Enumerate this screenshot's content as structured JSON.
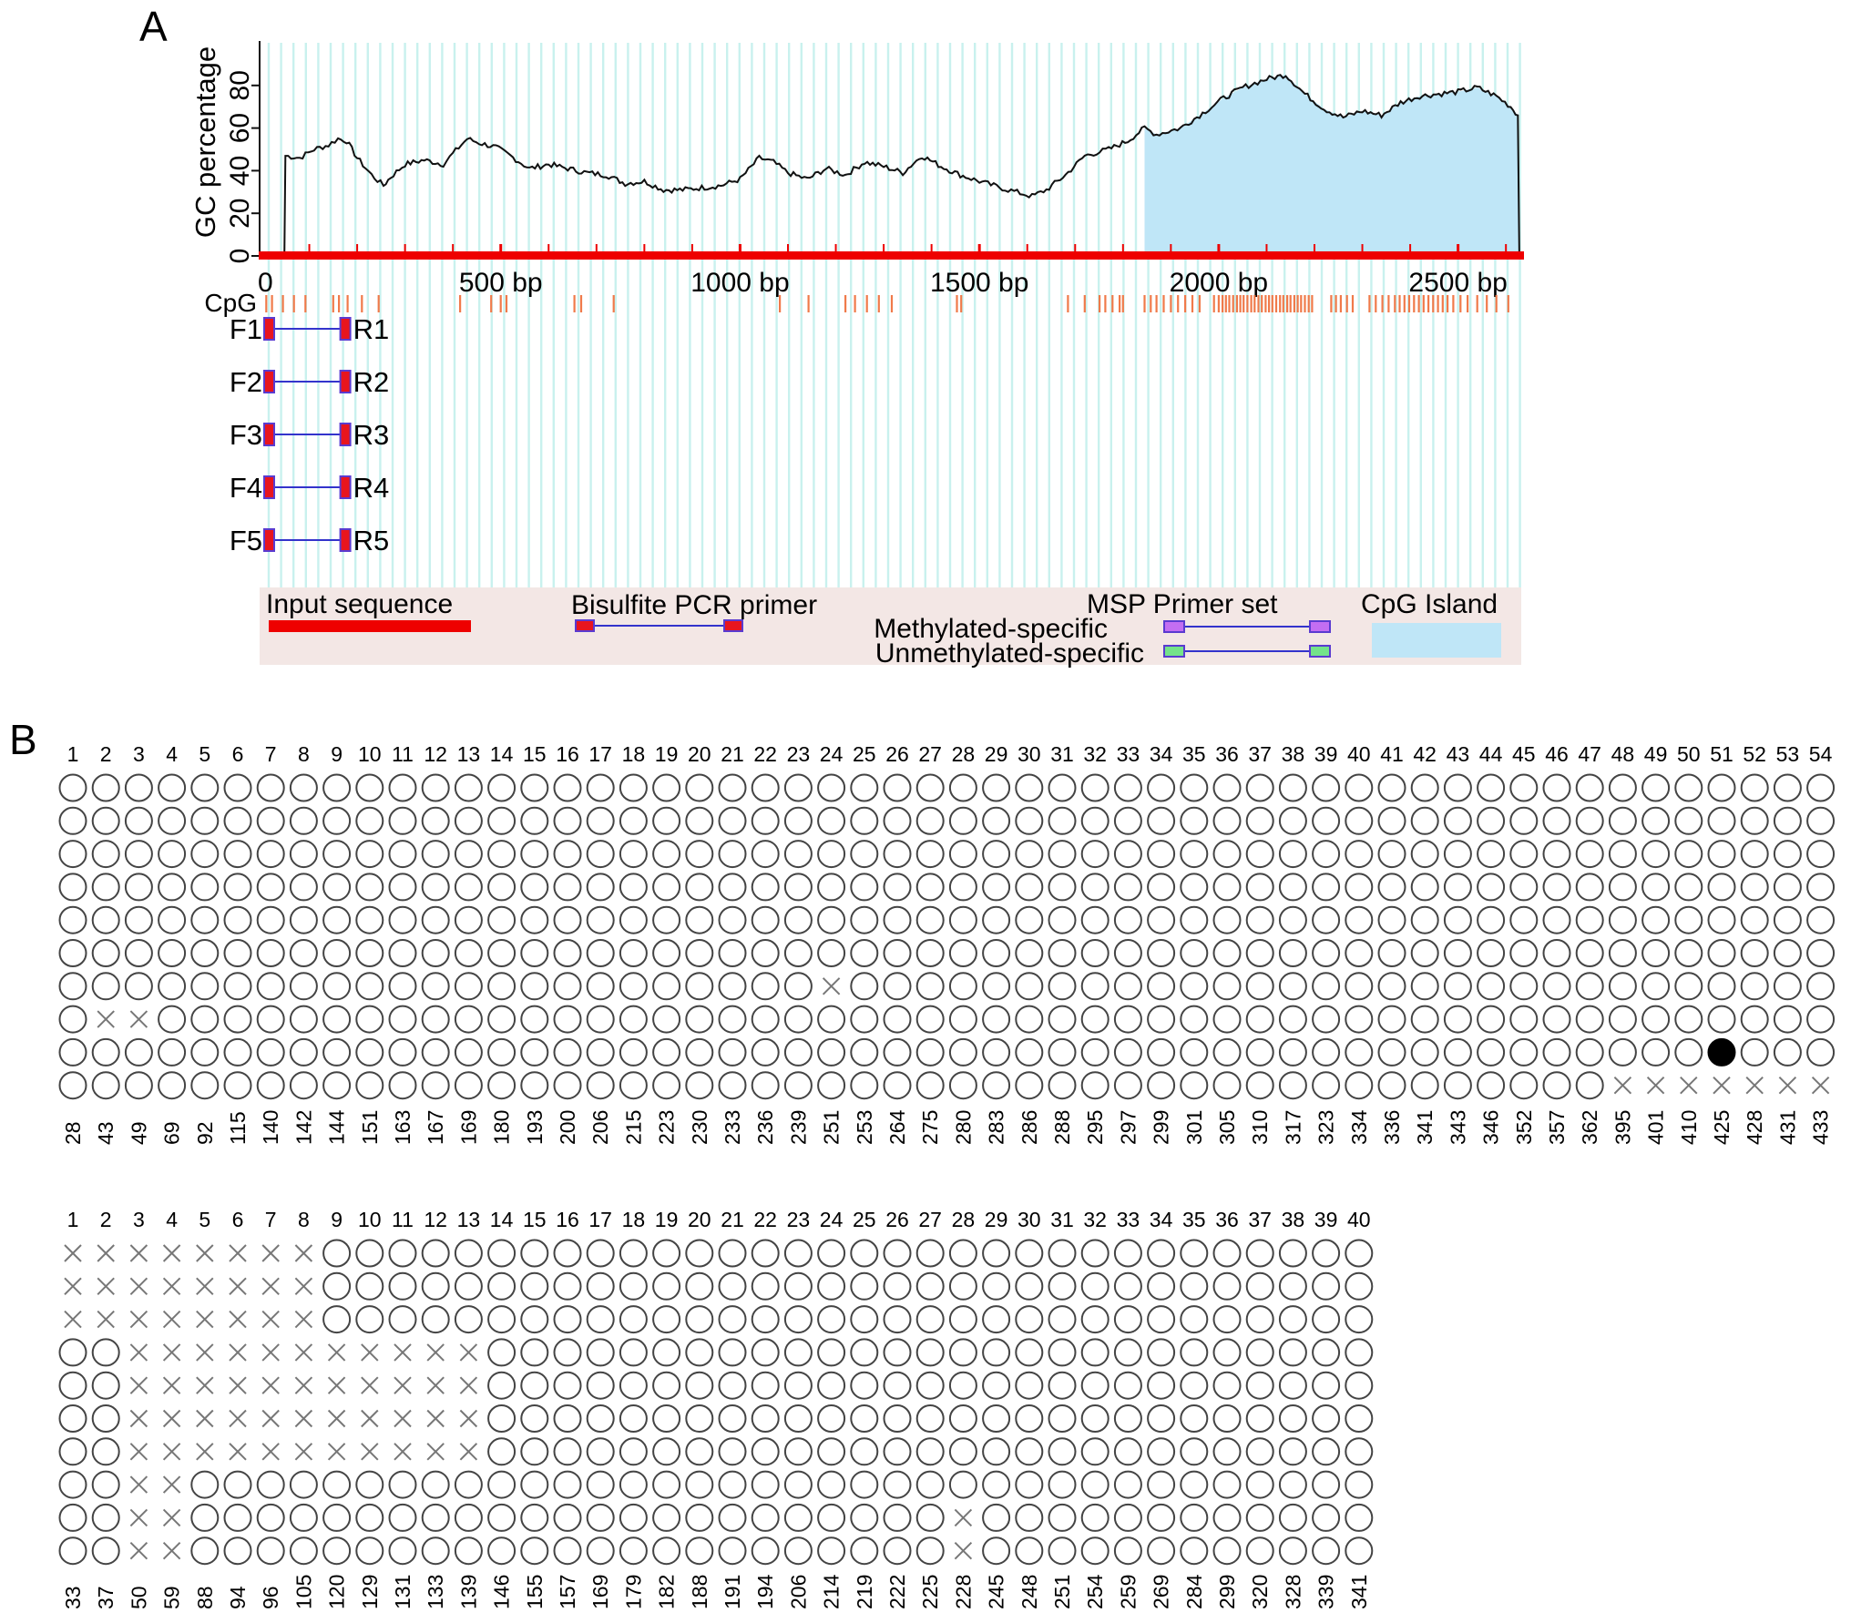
{
  "panel_a": {
    "label": "A",
    "y_axis_label": "GC percentage",
    "y_ticks": [
      "0",
      "20",
      "40",
      "60",
      "80"
    ],
    "x_ticks": [
      {
        "bp": 0,
        "label": "0"
      },
      {
        "bp": 500,
        "label": "500 bp"
      },
      {
        "bp": 1000,
        "label": "1000 bp"
      },
      {
        "bp": 1500,
        "label": "1500 bp"
      },
      {
        "bp": 2000,
        "label": "2000 bp"
      },
      {
        "bp": 2500,
        "label": "2500 bp"
      }
    ],
    "cpg_track_label": "CpG",
    "sequence_length_bp": 2632,
    "cpg_island_range_bp": [
      1845,
      2632
    ],
    "gc_profile": [
      [
        0,
        0
      ],
      [
        48,
        0
      ],
      [
        50,
        47
      ],
      [
        80,
        46
      ],
      [
        110,
        50
      ],
      [
        140,
        52
      ],
      [
        160,
        55
      ],
      [
        178,
        54
      ],
      [
        200,
        46
      ],
      [
        230,
        38
      ],
      [
        255,
        33
      ],
      [
        270,
        37
      ],
      [
        300,
        43
      ],
      [
        340,
        45
      ],
      [
        380,
        43
      ],
      [
        400,
        48
      ],
      [
        430,
        55
      ],
      [
        455,
        53
      ],
      [
        490,
        51
      ],
      [
        520,
        47
      ],
      [
        560,
        41
      ],
      [
        600,
        43
      ],
      [
        640,
        41
      ],
      [
        680,
        39
      ],
      [
        720,
        38
      ],
      [
        760,
        34
      ],
      [
        800,
        35
      ],
      [
        840,
        31
      ],
      [
        880,
        31
      ],
      [
        920,
        32
      ],
      [
        960,
        33
      ],
      [
        1000,
        36
      ],
      [
        1040,
        46
      ],
      [
        1070,
        44
      ],
      [
        1100,
        39
      ],
      [
        1140,
        36
      ],
      [
        1180,
        41
      ],
      [
        1220,
        38
      ],
      [
        1260,
        44
      ],
      [
        1300,
        42
      ],
      [
        1340,
        39
      ],
      [
        1380,
        47
      ],
      [
        1420,
        42
      ],
      [
        1460,
        38
      ],
      [
        1500,
        35
      ],
      [
        1560,
        31
      ],
      [
        1610,
        28
      ],
      [
        1640,
        31
      ],
      [
        1680,
        38
      ],
      [
        1720,
        47
      ],
      [
        1770,
        50
      ],
      [
        1810,
        54
      ],
      [
        1845,
        60
      ],
      [
        1870,
        57
      ],
      [
        1920,
        60
      ],
      [
        1960,
        66
      ],
      [
        2010,
        74
      ],
      [
        2050,
        79
      ],
      [
        2100,
        83
      ],
      [
        2140,
        85
      ],
      [
        2180,
        76
      ],
      [
        2220,
        69
      ],
      [
        2260,
        65
      ],
      [
        2300,
        68
      ],
      [
        2340,
        66
      ],
      [
        2380,
        72
      ],
      [
        2420,
        75
      ],
      [
        2460,
        76
      ],
      [
        2500,
        77
      ],
      [
        2540,
        79
      ],
      [
        2580,
        75
      ],
      [
        2610,
        70
      ],
      [
        2625,
        66
      ],
      [
        2628,
        0
      ],
      [
        2632,
        0
      ]
    ],
    "cpg_sites_bp": [
      10,
      22,
      45,
      68,
      92,
      150,
      162,
      180,
      210,
      245,
      415,
      480,
      500,
      512,
      654,
      668,
      736,
      1083,
      1143,
      1220,
      1240,
      1265,
      1290,
      1317,
      1453,
      1462,
      1685,
      1720,
      1751,
      1763,
      1778,
      1793,
      1800,
      1845,
      1858,
      1870,
      1885,
      1900,
      1915,
      1930,
      1945,
      1960,
      1990,
      2000,
      2008,
      2015,
      2022,
      2030,
      2038,
      2045,
      2052,
      2060,
      2068,
      2075,
      2083,
      2090,
      2098,
      2105,
      2112,
      2120,
      2128,
      2135,
      2143,
      2150,
      2158,
      2165,
      2172,
      2180,
      2188,
      2195,
      2235,
      2245,
      2255,
      2268,
      2280,
      2315,
      2328,
      2342,
      2355,
      2368,
      2378,
      2388,
      2398,
      2408,
      2418,
      2428,
      2438,
      2448,
      2458,
      2468,
      2478,
      2490,
      2505,
      2520,
      2540,
      2560,
      2580,
      2605
    ],
    "primers": [
      {
        "forward": "F1",
        "reverse": "R1"
      },
      {
        "forward": "F2",
        "reverse": "R2"
      },
      {
        "forward": "F3",
        "reverse": "R3"
      },
      {
        "forward": "F4",
        "reverse": "R4"
      },
      {
        "forward": "F5",
        "reverse": "R5"
      }
    ],
    "primer_span_bp": [
      0,
      180
    ],
    "legend": {
      "input_sequence": "Input sequence",
      "bisulfite_pcr_primer": "Bisulfite PCR primer",
      "msp_primer_set": "MSP Primer set",
      "methylated_specific": "Methylated-specific",
      "unmethylated_specific": "Unmethylated-specific",
      "cpg_island": "CpG Island"
    },
    "colors": {
      "gc_line": "#111111",
      "cpg_island_fill": "#bfe6f7",
      "input_sequence": "#ee0000",
      "cpg_tick": "#f07a4a",
      "grid_stripe": "#c9f1ee",
      "legend_bg": "#f3e7e5",
      "primer_fill": "#e8151e",
      "primer_border": "#5a3bd0",
      "methylated": "#c36ef2",
      "unmethylated": "#74e38a",
      "connector": "#3333cc"
    }
  },
  "panel_b": {
    "label": "B",
    "blocks": [
      {
        "columns": [
          "1",
          "2",
          "3",
          "4",
          "5",
          "6",
          "7",
          "8",
          "9",
          "10",
          "11",
          "12",
          "13",
          "14",
          "15",
          "16",
          "17",
          "18",
          "19",
          "20",
          "21",
          "22",
          "23",
          "24",
          "25",
          "26",
          "27",
          "28",
          "29",
          "30",
          "31",
          "32",
          "33",
          "34",
          "35",
          "36",
          "37",
          "38",
          "39",
          "40",
          "41",
          "42",
          "43",
          "44",
          "45",
          "46",
          "47",
          "48",
          "49",
          "50",
          "51",
          "52",
          "53",
          "54"
        ],
        "positions": [
          "28",
          "43",
          "49",
          "69",
          "92",
          "115",
          "140",
          "142",
          "144",
          "151",
          "163",
          "167",
          "169",
          "180",
          "193",
          "200",
          "206",
          "215",
          "223",
          "230",
          "233",
          "236",
          "239",
          "251",
          "253",
          "264",
          "275",
          "280",
          "283",
          "286",
          "288",
          "295",
          "297",
          "299",
          "301",
          "305",
          "310",
          "317",
          "323",
          "334",
          "336",
          "341",
          "343",
          "346",
          "352",
          "357",
          "362",
          "395",
          "401",
          "410",
          "425",
          "428",
          "431",
          "433"
        ],
        "rows": [
          "oooooooooooooooooooooooooooooooooooooooooooooooooooooo",
          "oooooooooooooooooooooooooooooooooooooooooooooooooooooo",
          "oooooooooooooooooooooooooooooooooooooooooooooooooooooo",
          "oooooooooooooooooooooooooooooooooooooooooooooooooooooo",
          "oooooooooooooooooooooooooooooooooooooooooooooooooooooo",
          "oooooooooooooooooooooooooooooooooooooooooooooooooooooo",
          "oooooooooooooooooooooooxoooooooooooooooooooooooooooooo",
          "oxxooooooooooooooooooooooooooooooooooooooooooooooooooo",
          "oooooooooooooooooooooooooooooooooooooooooooooooooo●ooo",
          "oooooooooooooooooooooooooooooooooooooooooooooooxxxxxxx"
        ]
      },
      {
        "columns": [
          "1",
          "2",
          "3",
          "4",
          "5",
          "6",
          "7",
          "8",
          "9",
          "10",
          "11",
          "12",
          "13",
          "14",
          "15",
          "16",
          "17",
          "18",
          "19",
          "20",
          "21",
          "22",
          "23",
          "24",
          "25",
          "26",
          "27",
          "28",
          "29",
          "30",
          "31",
          "32",
          "33",
          "34",
          "35",
          "36",
          "37",
          "38",
          "39",
          "40"
        ],
        "positions": [
          "33",
          "37",
          "50",
          "59",
          "88",
          "94",
          "96",
          "105",
          "120",
          "129",
          "131",
          "133",
          "139",
          "146",
          "155",
          "157",
          "169",
          "179",
          "182",
          "188",
          "191",
          "194",
          "206",
          "214",
          "219",
          "222",
          "225",
          "228",
          "245",
          "248",
          "251",
          "254",
          "259",
          "269",
          "284",
          "299",
          "320",
          "328",
          "339",
          "341"
        ],
        "rows": [
          "xxxxxxxxoooooooooooooooooooooooooooooooo",
          "xxxxxxxxoooooooooooooooooooooooooooooooo",
          "xxxxxxxxoooooooooooooooooooooooooooooooo",
          "ooxxxxxxxxxxxooooooooooooooooooooooooooo",
          "ooxxxxxxxxxxxooooooooooooooooooooooooooo",
          "ooxxxxxxxxxxxooooooooooooooooooooooooooo",
          "ooxxxxxxxxxxxooooooooooooooooooooooooooo",
          "ooxxoooooooooooooooooooooooooooooooooooo",
          "ooxxoooooooooooooooooooooooxoooooooooooo",
          "ooxxoooooooooooooooooooooooxoooooooooooo"
        ]
      }
    ]
  }
}
